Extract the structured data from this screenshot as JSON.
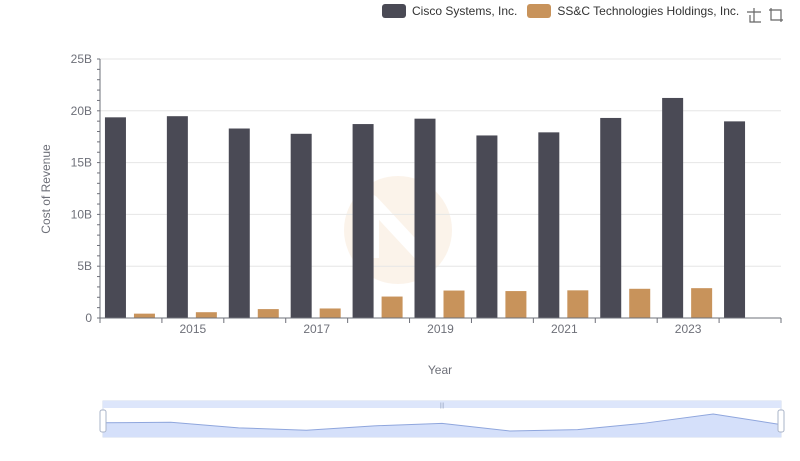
{
  "colors": {
    "cisco": "#4a4a55",
    "ssc": "#c8935b",
    "axis": "#6e7079",
    "grid": "#e6e6e6",
    "zoom_fill": "#d5e0fa",
    "zoom_border": "#bccbf2"
  },
  "legend": {
    "items": [
      {
        "label": "Cisco Systems, Inc.",
        "color": "#4a4a55"
      },
      {
        "label": "SS&C Technologies Holdings, Inc.",
        "color": "#c8935b"
      }
    ]
  },
  "toolbar": {
    "icons": [
      "zoom-icon",
      "restore-icon"
    ]
  },
  "chart_data": {
    "type": "bar",
    "xlabel": "Year",
    "ylabel": "Cost of Revenue",
    "ylim": [
      0,
      25000000000
    ],
    "yticks": [
      0,
      5000000000,
      10000000000,
      15000000000,
      20000000000,
      25000000000
    ],
    "ytick_labels": [
      "0",
      "5B",
      "10B",
      "15B",
      "20B",
      "25B"
    ],
    "categories": [
      "2014",
      "2015",
      "2016",
      "2017",
      "2018",
      "2019",
      "2020",
      "2021",
      "2022",
      "2023",
      "2024"
    ],
    "xtick_labels_shown": [
      "2015",
      "2017",
      "2019",
      "2021",
      "2023"
    ],
    "grid": true,
    "legend_position": "top-right",
    "series": [
      {
        "name": "Cisco Systems, Inc.",
        "values": [
          19370000000,
          19480000000,
          18290000000,
          17780000000,
          18720000000,
          19240000000,
          17620000000,
          17920000000,
          19310000000,
          21240000000,
          18980000000
        ]
      },
      {
        "name": "SS&C Technologies Holdings, Inc.",
        "values": [
          420000000,
          560000000,
          860000000,
          920000000,
          2070000000,
          2650000000,
          2600000000,
          2670000000,
          2820000000,
          2880000000,
          null
        ]
      }
    ]
  }
}
